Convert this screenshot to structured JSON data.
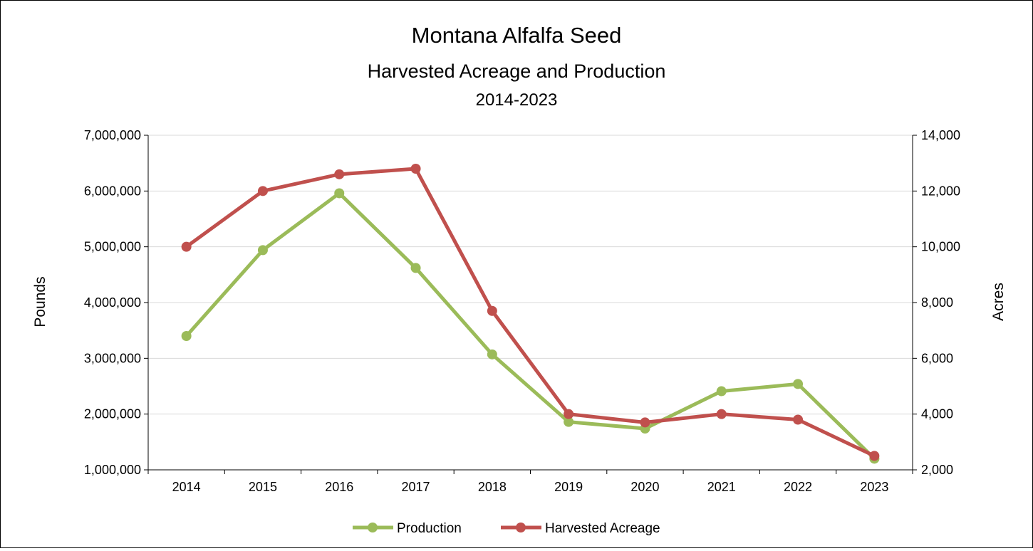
{
  "chart_data": {
    "type": "line",
    "title": "Montana Alfalfa Seed",
    "subtitle": "Harvested Acreage and Production",
    "subtitle2": "2014-2023",
    "categories": [
      "2014",
      "2015",
      "2016",
      "2017",
      "2018",
      "2019",
      "2020",
      "2021",
      "2022",
      "2023"
    ],
    "y_left": {
      "label": "Pounds",
      "min": 1000000,
      "max": 7000000,
      "ticks": [
        1000000,
        2000000,
        3000000,
        4000000,
        5000000,
        6000000,
        7000000
      ],
      "tick_labels": [
        "1,000,000",
        "2,000,000",
        "3,000,000",
        "4,000,000",
        "5,000,000",
        "6,000,000",
        "7,000,000"
      ]
    },
    "y_right": {
      "label": "Acres",
      "min": 2000,
      "max": 14000,
      "ticks": [
        2000,
        4000,
        6000,
        8000,
        10000,
        12000,
        14000
      ],
      "tick_labels": [
        "2,000",
        "4,000",
        "6,000",
        "8,000",
        "10,000",
        "12,000",
        "14,000"
      ]
    },
    "series": [
      {
        "name": "Production",
        "axis": "left",
        "color": "#9BBB59",
        "values": [
          3400000,
          4940000,
          5960000,
          4620000,
          3070000,
          1860000,
          1740000,
          2410000,
          2540000,
          1200000
        ]
      },
      {
        "name": "Harvested Acreage",
        "axis": "right",
        "color": "#C0504D",
        "values": [
          10000,
          12000,
          12600,
          12800,
          7700,
          4000,
          3700,
          4000,
          3800,
          2500
        ]
      }
    ],
    "grid": true,
    "legend_position": "bottom"
  }
}
